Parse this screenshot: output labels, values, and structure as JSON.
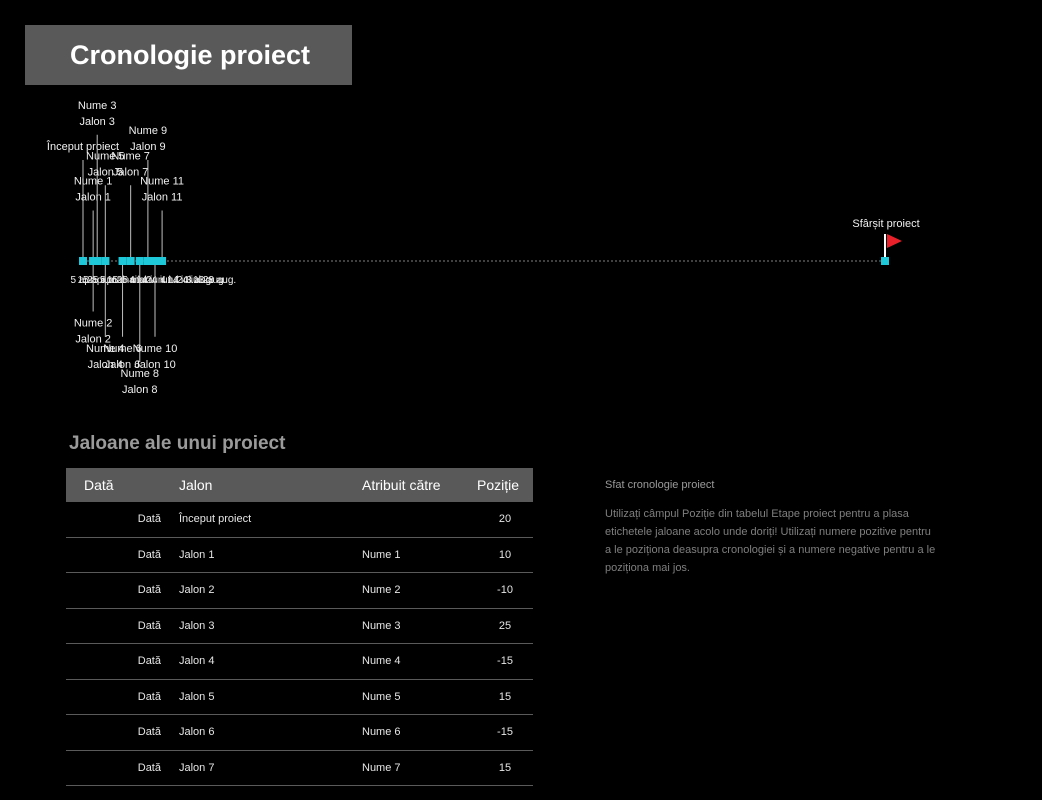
{
  "title": "Cronologie proiect",
  "timeline": {
    "axis_ticks": [
      "5 apr.",
      "15 apr.",
      "25 apr.",
      "5 mai",
      "15 mai",
      "25 mai",
      "4 iun.",
      "14 iun.",
      "24 iun.",
      "4 iul.",
      "14 iul.",
      "24 iul.",
      "3 aug.",
      "13 aug.",
      "23 aug."
    ],
    "start_label": "Început proiect",
    "end_label": "Sfârșit proiect",
    "milestones": [
      {
        "name": "Nume 1",
        "jalon": "Jalon 1",
        "position": 10
      },
      {
        "name": "Nume 2",
        "jalon": "Jalon 2",
        "position": -10
      },
      {
        "name": "Nume 3",
        "jalon": "Jalon 3",
        "position": 25
      },
      {
        "name": "Nume 4",
        "jalon": "Jalon 4",
        "position": -15
      },
      {
        "name": "Nume 5",
        "jalon": "Jalon 5",
        "position": 15
      },
      {
        "name": "Nume 6",
        "jalon": "Jalon 6",
        "position": -15
      },
      {
        "name": "Nume 7",
        "jalon": "Jalon 7",
        "position": 15
      },
      {
        "name": "Nume 8",
        "jalon": "Jalon 8",
        "position": -20
      },
      {
        "name": "Nume 9",
        "jalon": "Jalon 9",
        "position": 20
      },
      {
        "name": "Nume 10",
        "jalon": "Jalon 10",
        "position": -15
      },
      {
        "name": "Nume 11",
        "jalon": "Jalon 11",
        "position": 10
      }
    ],
    "colors": {
      "marker": "#1fc8d8",
      "flag": "#e8202a",
      "line": "#7f7f7f"
    }
  },
  "table": {
    "heading": "Jaloane ale unui proiect",
    "headers": [
      "Dată",
      "Jalon",
      "Atribuit către",
      "Poziție"
    ],
    "rows": [
      [
        "Dată",
        "Început proiect",
        "",
        "20"
      ],
      [
        "Dată",
        "Jalon 1",
        "Nume 1",
        "10"
      ],
      [
        "Dată",
        "Jalon 2",
        "Nume 2",
        "-10"
      ],
      [
        "Dată",
        "Jalon 3",
        "Nume 3",
        "25"
      ],
      [
        "Dată",
        "Jalon 4",
        "Nume 4",
        "-15"
      ],
      [
        "Dată",
        "Jalon 5",
        "Nume 5",
        "15"
      ],
      [
        "Dată",
        "Jalon 6",
        "Nume 6",
        "-15"
      ],
      [
        "Dată",
        "Jalon 7",
        "Nume 7",
        "15"
      ]
    ]
  },
  "tip": {
    "title": "Sfat cronologie proiect",
    "body": "Utilizați câmpul Poziție din tabelul Etape proiect pentru a plasa etichetele jaloane acolo unde doriți! Utilizați numere pozitive pentru a le poziționa deasupra cronologiei și a numere negative pentru a le poziționa mai jos."
  }
}
